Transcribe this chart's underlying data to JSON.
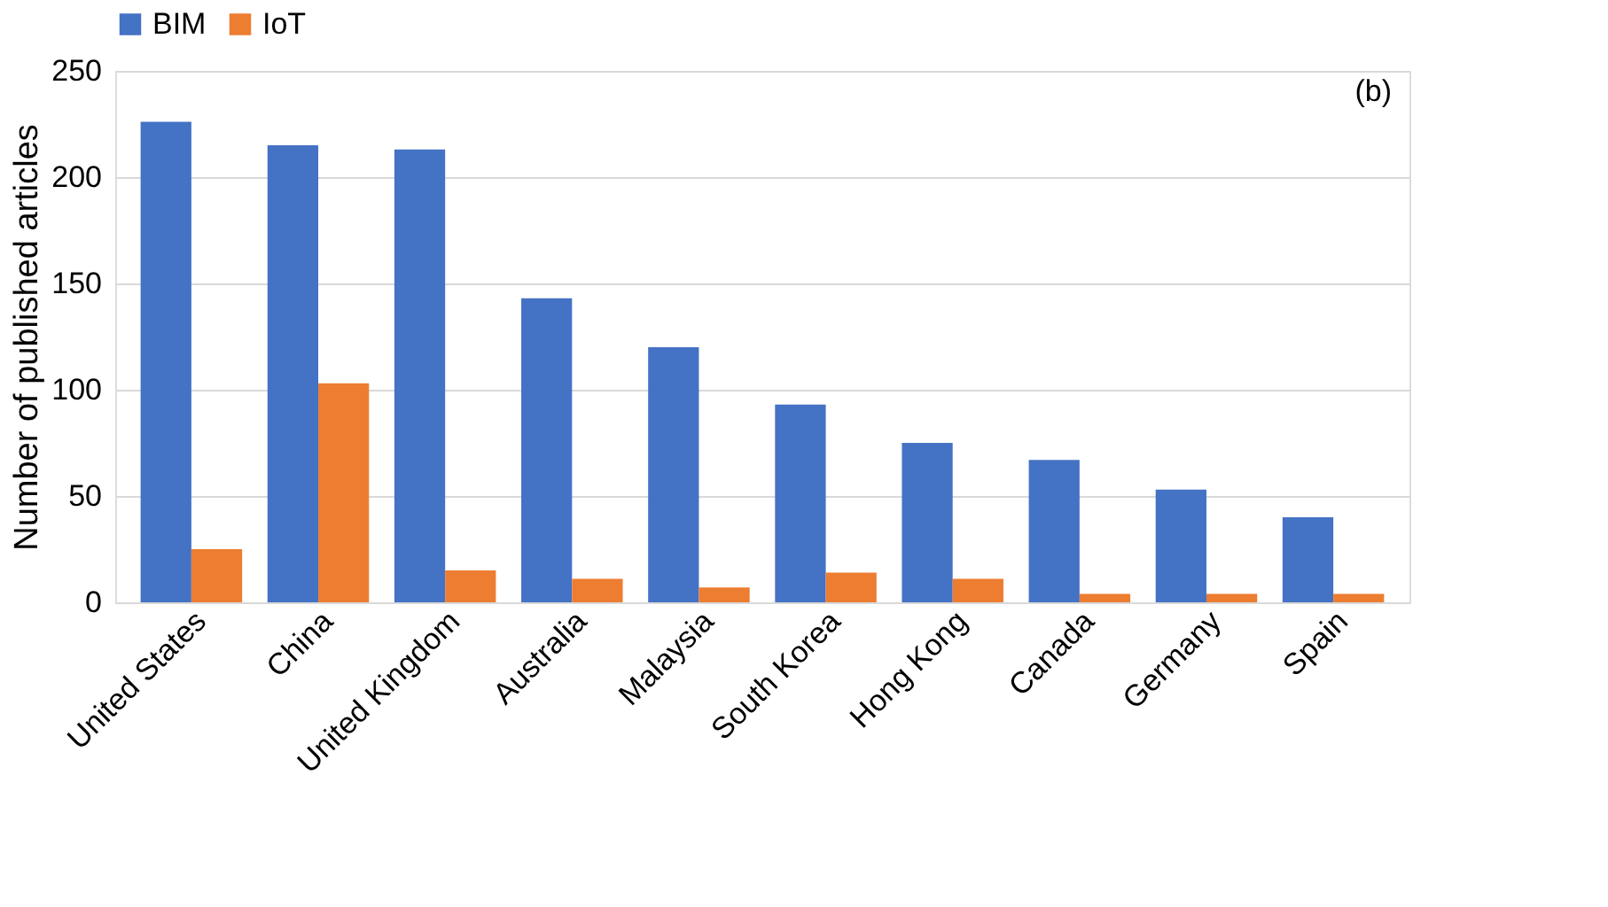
{
  "chart_data": {
    "type": "bar",
    "ylabel": "Number of published articles",
    "categories": [
      "United States",
      "China",
      "United Kingdom",
      "Australia",
      "Malaysia",
      "South Korea",
      "Hong Kong",
      "Canada",
      "Germany",
      "Spain"
    ],
    "series": [
      {
        "name": "BIM",
        "color": "#4472c4",
        "values": [
          226,
          215,
          213,
          143,
          120,
          93,
          75,
          67,
          53,
          40
        ]
      },
      {
        "name": "IoT",
        "color": "#ed7d31",
        "values": [
          25,
          103,
          15,
          11,
          7,
          14,
          11,
          4,
          4,
          4
        ]
      }
    ],
    "ylim": [
      0,
      250
    ],
    "yticks": [
      0,
      50,
      100,
      150,
      200,
      250
    ],
    "grid": "y",
    "legend": "top",
    "annotations": [
      "(b)"
    ]
  }
}
